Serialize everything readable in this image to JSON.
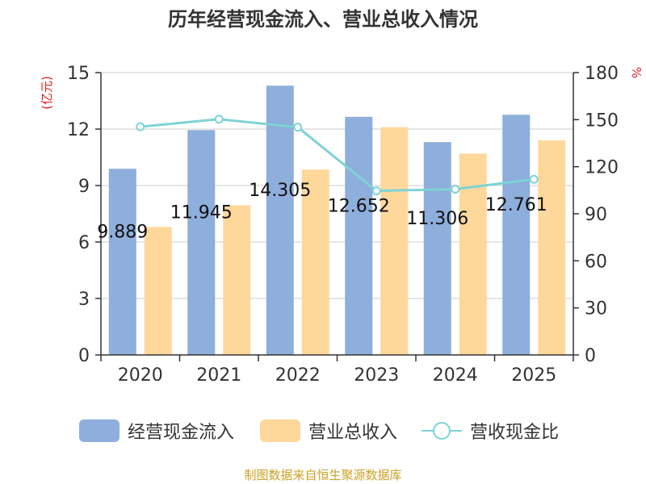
{
  "chart_data": {
    "type": "bar",
    "title": "历年经营现金流入、营业总收入情况",
    "categories": [
      "2020",
      "2021",
      "2022",
      "2023",
      "2024",
      "2025"
    ],
    "y_left": {
      "label": "(亿元)",
      "ylim": [
        0,
        15
      ],
      "ticks": [
        "0",
        "3",
        "6",
        "9",
        "12",
        "15"
      ]
    },
    "y_right": {
      "label": "%",
      "ylim": [
        0,
        180
      ],
      "ticks": [
        "0",
        "30",
        "60",
        "90",
        "120",
        "150",
        "180"
      ]
    },
    "series": [
      {
        "name": "经营现金流入",
        "type": "bar",
        "axis": "left",
        "color": "#8eaedb",
        "values": [
          9.889,
          11.945,
          14.305,
          12.652,
          11.306,
          12.761
        ],
        "data_labels": [
          "9.889",
          "11.945",
          "14.305",
          "12.652",
          "11.306",
          "12.761"
        ]
      },
      {
        "name": "营业总收入",
        "type": "bar",
        "axis": "left",
        "color": "#fed89b",
        "values": [
          6.8,
          7.95,
          9.85,
          12.1,
          10.7,
          11.4
        ]
      },
      {
        "name": "营收现金比",
        "type": "line",
        "axis": "right",
        "color": "#7ed3d6",
        "values": [
          145.5,
          150.3,
          145.2,
          104.6,
          105.7,
          112.0
        ]
      }
    ],
    "grid": true,
    "legend_position": "bottom"
  },
  "source": "制图数据来自恒生聚源数据库"
}
